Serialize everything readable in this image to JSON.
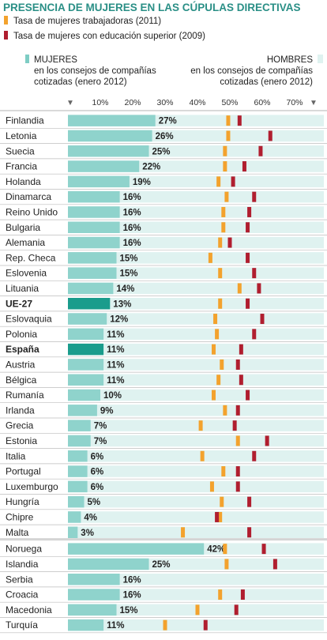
{
  "chart_data": {
    "type": "bar",
    "title": "PRESENCIA DE MUJERES EN LAS CÚPULAS DIRECTIVAS",
    "legend": {
      "workers": "Tasa de mujeres trabajadoras (2011)",
      "education": "Tasa de mujeres con educación superior (2009)"
    },
    "header_left": {
      "line1": "MUJERES",
      "line2": "en los consejos de compañías",
      "line3": "cotizadas (enero 2012)"
    },
    "header_right": {
      "line1": "HOMBRES",
      "line2": "en los consejos de compañías",
      "line3": "cotizadas (enero 2012)"
    },
    "ticks": [
      "10%",
      "20%",
      "30%",
      "40%",
      "50%",
      "60%",
      "70%"
    ],
    "tick_values": [
      10,
      20,
      30,
      40,
      50,
      60,
      70
    ],
    "xlim": [
      0,
      76
    ],
    "colors": {
      "women": "#8fd3cc",
      "women_highlight": "#1a9c8c",
      "men": "#dff2f0",
      "workers": "#f3a22d",
      "education": "#b01e2f",
      "title": "#2a8f86",
      "legend_teal": "#7ecdc4"
    },
    "series": [
      {
        "name": "Mujeres en los consejos de compañías cotizadas (enero 2012)",
        "key": "women"
      },
      {
        "name": "Tasa de mujeres trabajadoras (2011)",
        "key": "workers"
      },
      {
        "name": "Tasa de mujeres con educación superior (2009)",
        "key": "education"
      }
    ],
    "groups": [
      {
        "rows": [
          {
            "country": "Finlandia",
            "women": 27,
            "label": "27%",
            "workers": 49.5,
            "education": 53
          },
          {
            "country": "Letonia",
            "women": 26,
            "label": "26%",
            "workers": 49.5,
            "education": 62.5
          },
          {
            "country": "Suecia",
            "women": 25,
            "label": "25%",
            "workers": 48.5,
            "education": 59.5
          },
          {
            "country": "Francia",
            "women": 22,
            "label": "22%",
            "workers": 48.5,
            "education": 54.5
          },
          {
            "country": "Holanda",
            "women": 19,
            "label": "19%",
            "workers": 46.5,
            "education": 51
          },
          {
            "country": "Dinamarca",
            "women": 16,
            "label": "16%",
            "workers": 49,
            "education": 57.5
          },
          {
            "country": "Reino Unido",
            "women": 16,
            "label": "16%",
            "workers": 48,
            "education": 56
          },
          {
            "country": "Bulgaria",
            "women": 16,
            "label": "16%",
            "workers": 48,
            "education": 55.5
          },
          {
            "country": "Alemania",
            "women": 16,
            "label": "16%",
            "workers": 47,
            "education": 50
          },
          {
            "country": "Rep. Checa",
            "women": 15,
            "label": "15%",
            "workers": 44,
            "education": 55.5
          },
          {
            "country": "Eslovenia",
            "women": 15,
            "label": "15%",
            "workers": 47,
            "education": 57.5
          },
          {
            "country": "Lituania",
            "women": 14,
            "label": "14%",
            "workers": 53,
            "education": 59
          },
          {
            "country": "UE-27",
            "women": 13,
            "label": "13%",
            "workers": 47,
            "education": 55.5,
            "highlight": true
          },
          {
            "country": "Eslovaquia",
            "women": 12,
            "label": "12%",
            "workers": 45.5,
            "education": 60
          },
          {
            "country": "Polonia",
            "women": 11,
            "label": "11%",
            "workers": 46,
            "education": 57.5
          },
          {
            "country": "España",
            "women": 11,
            "label": "11%",
            "workers": 45,
            "education": 53.5,
            "highlight": true
          },
          {
            "country": "Austria",
            "women": 11,
            "label": "11%",
            "workers": 47.5,
            "education": 52.5
          },
          {
            "country": "Bélgica",
            "women": 11,
            "label": "11%",
            "workers": 46.5,
            "education": 53.5
          },
          {
            "country": "Rumanía",
            "women": 10,
            "label": "10%",
            "workers": 45,
            "education": 55.5
          },
          {
            "country": "Irlanda",
            "women": 9,
            "label": "9%",
            "workers": 48.5,
            "education": 52.5
          },
          {
            "country": "Grecia",
            "women": 7,
            "label": "7%",
            "workers": 41,
            "education": 51.5
          },
          {
            "country": "Estonia",
            "women": 7,
            "label": "7%",
            "workers": 52.5,
            "education": 61.5
          },
          {
            "country": "Italia",
            "women": 6,
            "label": "6%",
            "workers": 41.5,
            "education": 57.5
          },
          {
            "country": "Portugal",
            "women": 6,
            "label": "6%",
            "workers": 48,
            "education": 52.5
          },
          {
            "country": "Luxemburgo",
            "women": 6,
            "label": "6%",
            "workers": 44.5,
            "education": 52.5
          },
          {
            "country": "Hungría",
            "women": 5,
            "label": "5%",
            "workers": 47.5,
            "education": 56
          },
          {
            "country": "Chipre",
            "women": 4,
            "label": "4%",
            "workers": 47,
            "education": 46
          },
          {
            "country": "Malta",
            "women": 3,
            "label": "3%",
            "workers": 35.5,
            "education": 56
          }
        ]
      },
      {
        "rows": [
          {
            "country": "Noruega",
            "women": 42,
            "label": "42%",
            "workers": 48.5,
            "education": 60.5
          },
          {
            "country": "Islandia",
            "women": 25,
            "label": "25%",
            "workers": 49,
            "education": 64
          },
          {
            "country": "Serbia",
            "women": 16,
            "label": "16%"
          },
          {
            "country": "Croacia",
            "women": 16,
            "label": "16%",
            "workers": 47,
            "education": 54
          },
          {
            "country": "Macedonia",
            "women": 15,
            "label": "15%",
            "workers": 40,
            "education": 52
          },
          {
            "country": "Turquía",
            "women": 11,
            "label": "11%",
            "workers": 30,
            "education": 42.5
          }
        ]
      }
    ]
  }
}
